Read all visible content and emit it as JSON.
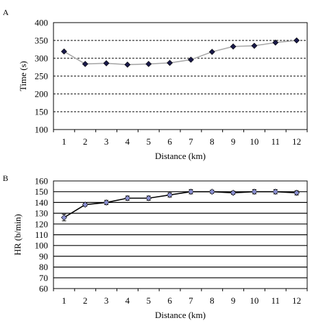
{
  "chart_data": [
    {
      "panel": "A",
      "type": "line",
      "xlabel": "Distance (km)",
      "ylabel": "Time (s)",
      "ylim": [
        100,
        400
      ],
      "yticks": [
        100,
        150,
        200,
        250,
        300,
        350,
        400
      ],
      "x": [
        1,
        2,
        3,
        4,
        5,
        6,
        7,
        8,
        9,
        10,
        11,
        12
      ],
      "series": [
        {
          "values": [
            319,
            284,
            286,
            282,
            284,
            287,
            296,
            318,
            333,
            335,
            344,
            350
          ],
          "line_color": "#a9a9a9",
          "marker": "diamond",
          "marker_color": "#1a1a4a"
        }
      ],
      "grid": "horizontal dashed",
      "legend": "none"
    },
    {
      "panel": "B",
      "type": "line",
      "xlabel": "Distance (km)",
      "ylabel": "HR (b/min)",
      "ylim": [
        60,
        160
      ],
      "yticks": [
        60,
        70,
        80,
        90,
        100,
        110,
        120,
        130,
        140,
        150,
        160
      ],
      "x": [
        1,
        2,
        3,
        4,
        5,
        6,
        7,
        8,
        9,
        10,
        11,
        12
      ],
      "series": [
        {
          "values": [
            126,
            138,
            140,
            144,
            144,
            147,
            150,
            150,
            149,
            150,
            150,
            149
          ],
          "error": [
            3,
            1.5,
            2,
            2,
            2,
            2,
            2,
            1.5,
            1.5,
            2,
            2,
            2
          ],
          "line_color": "#000000",
          "marker": "diamond",
          "marker_color": "#8a8fd0"
        }
      ],
      "grid": "horizontal solid",
      "legend": "none"
    }
  ]
}
